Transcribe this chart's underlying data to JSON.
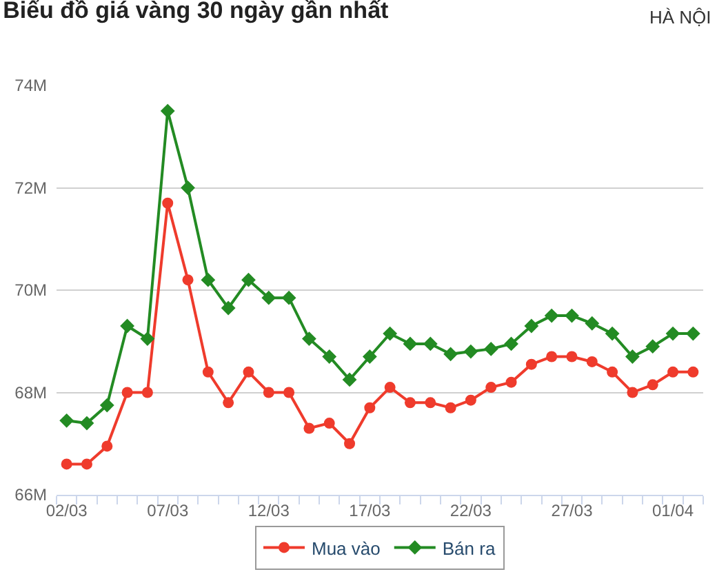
{
  "chart_data": {
    "type": "line",
    "title": "Biểu đồ giá vàng 30 ngày gần nhất",
    "subtitle": "HÀ NỘI",
    "categories": [
      "02/03",
      null,
      null,
      null,
      null,
      "07/03",
      null,
      null,
      null,
      null,
      "12/03",
      null,
      null,
      null,
      null,
      "17/03",
      null,
      null,
      null,
      null,
      "22/03",
      null,
      null,
      null,
      null,
      "27/03",
      null,
      null,
      null,
      null,
      "01/04",
      null
    ],
    "series": [
      {
        "name": "Mua vào",
        "color": "#ef3b2c",
        "marker": "circle",
        "values": [
          66.6,
          66.6,
          66.95,
          68.0,
          68.0,
          71.7,
          70.2,
          68.4,
          67.8,
          68.4,
          68.0,
          68.0,
          67.3,
          67.4,
          67.0,
          67.7,
          68.1,
          67.8,
          67.8,
          67.7,
          67.85,
          68.1,
          68.2,
          68.55,
          68.7,
          68.7,
          68.6,
          68.4,
          68.0,
          68.15,
          68.4,
          68.4
        ]
      },
      {
        "name": "Bán ra",
        "color": "#238b23",
        "marker": "diamond",
        "values": [
          67.45,
          67.4,
          67.75,
          69.3,
          69.05,
          73.5,
          72.0,
          70.2,
          69.65,
          70.2,
          69.85,
          69.85,
          69.05,
          68.7,
          68.25,
          68.7,
          69.15,
          68.95,
          68.95,
          68.75,
          68.8,
          68.85,
          68.95,
          69.3,
          69.5,
          69.5,
          69.35,
          69.15,
          68.7,
          68.9,
          69.15,
          69.15
        ]
      }
    ],
    "ylim": [
      66,
      74
    ],
    "yticks": [
      {
        "value": 66,
        "label": "66M"
      },
      {
        "value": 68,
        "label": "68M"
      },
      {
        "value": 70,
        "label": "70M"
      },
      {
        "value": 72,
        "label": "72M"
      },
      {
        "value": 74,
        "label": "74M"
      }
    ],
    "grid": "y",
    "legend": "bottom"
  }
}
